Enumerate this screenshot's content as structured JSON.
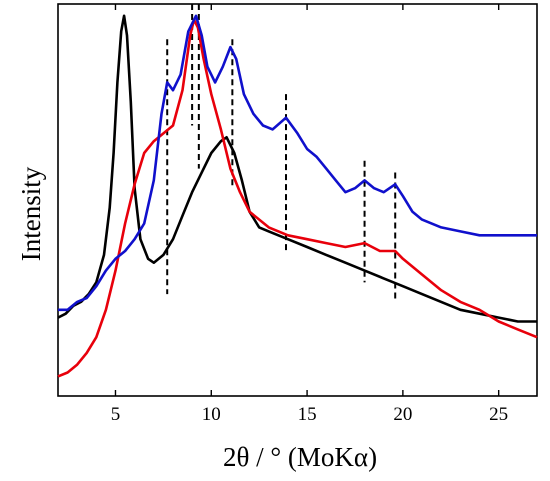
{
  "chart_data": {
    "type": "line",
    "title": "",
    "xlabel": "2θ / ° (MoKα)",
    "ylabel": "Intensity",
    "xlim": [
      2,
      27
    ],
    "ylim": [
      0,
      1
    ],
    "x_ticks": [
      5,
      10,
      15,
      20,
      25
    ],
    "y_ticks_shown": false,
    "grid": false,
    "legend": "none",
    "series": [
      {
        "color": "#000000",
        "points": [
          [
            2.0,
            0.2
          ],
          [
            2.4,
            0.21
          ],
          [
            2.8,
            0.23
          ],
          [
            3.2,
            0.24
          ],
          [
            3.6,
            0.26
          ],
          [
            4.0,
            0.29
          ],
          [
            4.4,
            0.36
          ],
          [
            4.7,
            0.48
          ],
          [
            4.9,
            0.62
          ],
          [
            5.1,
            0.8
          ],
          [
            5.3,
            0.93
          ],
          [
            5.45,
            0.97
          ],
          [
            5.6,
            0.92
          ],
          [
            5.8,
            0.75
          ],
          [
            6.0,
            0.53
          ],
          [
            6.3,
            0.4
          ],
          [
            6.7,
            0.35
          ],
          [
            7.0,
            0.34
          ],
          [
            7.5,
            0.36
          ],
          [
            8.0,
            0.4
          ],
          [
            8.5,
            0.46
          ],
          [
            9.0,
            0.52
          ],
          [
            9.5,
            0.57
          ],
          [
            10.0,
            0.62
          ],
          [
            10.5,
            0.65
          ],
          [
            10.8,
            0.66
          ],
          [
            11.2,
            0.62
          ],
          [
            11.6,
            0.55
          ],
          [
            12.0,
            0.47
          ],
          [
            12.5,
            0.43
          ],
          [
            13.0,
            0.42
          ],
          [
            13.5,
            0.41
          ],
          [
            14.0,
            0.4
          ],
          [
            15.0,
            0.38
          ],
          [
            16.0,
            0.36
          ],
          [
            17.0,
            0.34
          ],
          [
            18.0,
            0.32
          ],
          [
            19.0,
            0.3
          ],
          [
            20.0,
            0.28
          ],
          [
            21.0,
            0.26
          ],
          [
            22.0,
            0.24
          ],
          [
            23.0,
            0.22
          ],
          [
            24.0,
            0.21
          ],
          [
            25.0,
            0.2
          ],
          [
            26.0,
            0.19
          ],
          [
            27.0,
            0.19
          ]
        ]
      },
      {
        "color": "#e8000b",
        "points": [
          [
            2.0,
            0.05
          ],
          [
            2.5,
            0.06
          ],
          [
            3.0,
            0.08
          ],
          [
            3.5,
            0.11
          ],
          [
            4.0,
            0.15
          ],
          [
            4.5,
            0.22
          ],
          [
            5.0,
            0.32
          ],
          [
            5.5,
            0.44
          ],
          [
            6.0,
            0.54
          ],
          [
            6.5,
            0.62
          ],
          [
            7.0,
            0.65
          ],
          [
            7.5,
            0.67
          ],
          [
            8.0,
            0.69
          ],
          [
            8.5,
            0.78
          ],
          [
            8.9,
            0.92
          ],
          [
            9.1,
            0.96
          ],
          [
            9.3,
            0.94
          ],
          [
            9.6,
            0.86
          ],
          [
            10.0,
            0.77
          ],
          [
            10.5,
            0.68
          ],
          [
            11.0,
            0.58
          ],
          [
            11.5,
            0.52
          ],
          [
            12.0,
            0.47
          ],
          [
            13.0,
            0.43
          ],
          [
            14.0,
            0.41
          ],
          [
            15.0,
            0.4
          ],
          [
            16.0,
            0.39
          ],
          [
            17.0,
            0.38
          ],
          [
            18.0,
            0.39
          ],
          [
            18.8,
            0.37
          ],
          [
            19.6,
            0.37
          ],
          [
            20.0,
            0.35
          ],
          [
            21.0,
            0.31
          ],
          [
            22.0,
            0.27
          ],
          [
            23.0,
            0.24
          ],
          [
            24.0,
            0.22
          ],
          [
            25.0,
            0.19
          ],
          [
            26.0,
            0.17
          ],
          [
            27.0,
            0.15
          ]
        ]
      },
      {
        "color": "#1010cc",
        "points": [
          [
            2.0,
            0.22
          ],
          [
            2.5,
            0.22
          ],
          [
            3.0,
            0.24
          ],
          [
            3.5,
            0.25
          ],
          [
            4.0,
            0.28
          ],
          [
            4.5,
            0.32
          ],
          [
            5.0,
            0.35
          ],
          [
            5.5,
            0.37
          ],
          [
            6.0,
            0.4
          ],
          [
            6.5,
            0.44
          ],
          [
            7.0,
            0.55
          ],
          [
            7.4,
            0.72
          ],
          [
            7.7,
            0.8
          ],
          [
            8.0,
            0.78
          ],
          [
            8.4,
            0.82
          ],
          [
            8.8,
            0.93
          ],
          [
            9.2,
            0.97
          ],
          [
            9.5,
            0.92
          ],
          [
            9.8,
            0.84
          ],
          [
            10.2,
            0.8
          ],
          [
            10.6,
            0.84
          ],
          [
            11.0,
            0.89
          ],
          [
            11.3,
            0.86
          ],
          [
            11.7,
            0.77
          ],
          [
            12.2,
            0.72
          ],
          [
            12.7,
            0.69
          ],
          [
            13.2,
            0.68
          ],
          [
            13.9,
            0.71
          ],
          [
            14.5,
            0.67
          ],
          [
            15.0,
            0.63
          ],
          [
            15.5,
            0.61
          ],
          [
            16.0,
            0.58
          ],
          [
            16.5,
            0.55
          ],
          [
            17.0,
            0.52
          ],
          [
            17.5,
            0.53
          ],
          [
            18.0,
            0.55
          ],
          [
            18.5,
            0.53
          ],
          [
            19.0,
            0.52
          ],
          [
            19.6,
            0.54
          ],
          [
            20.0,
            0.51
          ],
          [
            20.5,
            0.47
          ],
          [
            21.0,
            0.45
          ],
          [
            22.0,
            0.43
          ],
          [
            23.0,
            0.42
          ],
          [
            24.0,
            0.41
          ],
          [
            25.0,
            0.41
          ],
          [
            26.0,
            0.41
          ],
          [
            27.0,
            0.41
          ]
        ]
      }
    ],
    "dashed_markers": [
      {
        "x": 7.7,
        "y_range": [
          0.26,
          0.91
        ]
      },
      {
        "x": 9.0,
        "y_range": [
          0.69,
          1.0
        ]
      },
      {
        "x": 9.35,
        "y_range": [
          0.58,
          1.0
        ]
      },
      {
        "x": 11.1,
        "y_range": [
          0.53,
          0.91
        ]
      },
      {
        "x": 13.9,
        "y_range": [
          0.37,
          0.77
        ]
      },
      {
        "x": 18.0,
        "y_range": [
          0.29,
          0.6
        ]
      },
      {
        "x": 19.6,
        "y_range": [
          0.24,
          0.57
        ]
      }
    ]
  }
}
